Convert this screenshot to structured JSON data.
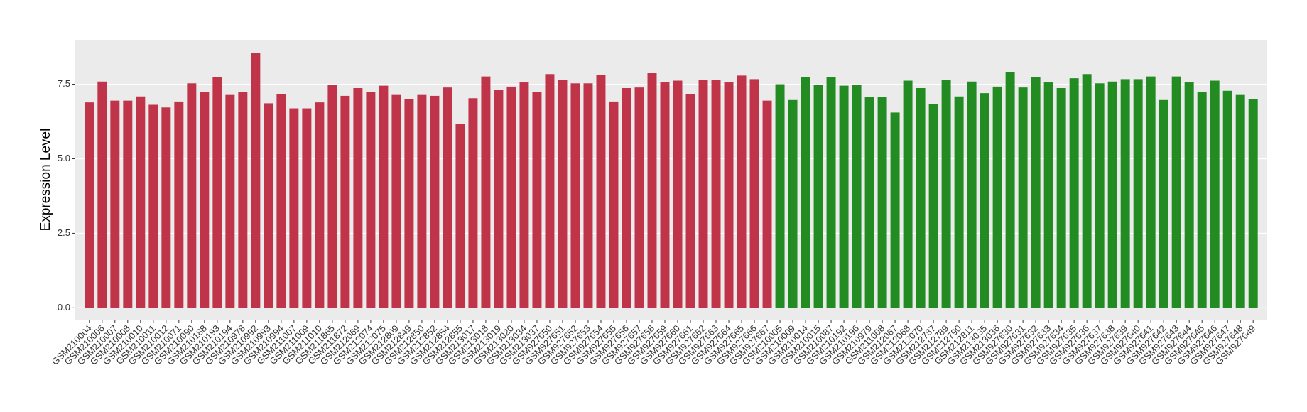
{
  "chart_data": {
    "type": "bar",
    "y_label": "Expression Level",
    "categories": [
      "GSM210004",
      "GSM210006",
      "GSM210007",
      "GSM210008",
      "GSM210010",
      "GSM210011",
      "GSM210012",
      "GSM210071",
      "GSM210090",
      "GSM210188",
      "GSM210193",
      "GSM210194",
      "GSM210978",
      "GSM210992",
      "GSM210993",
      "GSM210994",
      "GSM211007",
      "GSM211009",
      "GSM211010",
      "GSM211865",
      "GSM211872",
      "GSM212069",
      "GSM212074",
      "GSM212075",
      "GSM212809",
      "GSM212849",
      "GSM212850",
      "GSM212852",
      "GSM212854",
      "GSM212855",
      "GSM213017",
      "GSM213018",
      "GSM213019",
      "GSM213020",
      "GSM213034",
      "GSM213037",
      "GSM927650",
      "GSM927651",
      "GSM927652",
      "GSM927653",
      "GSM927654",
      "GSM927655",
      "GSM927656",
      "GSM927657",
      "GSM927658",
      "GSM927659",
      "GSM927660",
      "GSM927661",
      "GSM927662",
      "GSM927663",
      "GSM927664",
      "GSM927665",
      "GSM927666",
      "GSM927667",
      "GSM210005",
      "GSM210009",
      "GSM210014",
      "GSM210015",
      "GSM210087",
      "GSM210192",
      "GSM210196",
      "GSM210979",
      "GSM211008",
      "GSM212067",
      "GSM212068",
      "GSM212070",
      "GSM212787",
      "GSM212789",
      "GSM212790",
      "GSM212811",
      "GSM213035",
      "GSM213036",
      "GSM927630",
      "GSM927631",
      "GSM927632",
      "GSM927633",
      "GSM927634",
      "GSM927635",
      "GSM927636",
      "GSM927637",
      "GSM927638",
      "GSM927639",
      "GSM927640",
      "GSM927641",
      "GSM927642",
      "GSM927643",
      "GSM927644",
      "GSM927645",
      "GSM927646",
      "GSM927647",
      "GSM927648",
      "GSM927649"
    ],
    "values": [
      6.89,
      7.59,
      6.95,
      6.95,
      7.09,
      6.81,
      6.72,
      6.92,
      7.53,
      7.23,
      7.73,
      7.14,
      7.25,
      8.54,
      6.86,
      7.17,
      6.69,
      6.69,
      6.89,
      7.48,
      7.11,
      7.37,
      7.23,
      7.45,
      7.14,
      7.0,
      7.14,
      7.11,
      7.39,
      6.16,
      7.03,
      7.76,
      7.31,
      7.42,
      7.56,
      7.23,
      7.84,
      7.65,
      7.53,
      7.53,
      7.81,
      6.92,
      7.37,
      7.39,
      7.87,
      7.56,
      7.62,
      7.17,
      7.65,
      7.65,
      7.56,
      7.79,
      7.67,
      6.95,
      7.5,
      6.97,
      7.73,
      7.48,
      7.73,
      7.45,
      7.48,
      7.06,
      7.06,
      6.55,
      7.62,
      7.37,
      6.83,
      7.65,
      7.09,
      7.59,
      7.2,
      7.42,
      7.9,
      7.39,
      7.73,
      7.56,
      7.37,
      7.7,
      7.84,
      7.53,
      7.59,
      7.67,
      7.67,
      7.76,
      6.97,
      7.76,
      7.56,
      7.25,
      7.62,
      7.28,
      7.14,
      7.0
    ],
    "colors": [
      "#C0344A",
      "#C0344A",
      "#C0344A",
      "#C0344A",
      "#C0344A",
      "#C0344A",
      "#C0344A",
      "#C0344A",
      "#C0344A",
      "#C0344A",
      "#C0344A",
      "#C0344A",
      "#C0344A",
      "#C0344A",
      "#C0344A",
      "#C0344A",
      "#C0344A",
      "#C0344A",
      "#C0344A",
      "#C0344A",
      "#C0344A",
      "#C0344A",
      "#C0344A",
      "#C0344A",
      "#C0344A",
      "#C0344A",
      "#C0344A",
      "#C0344A",
      "#C0344A",
      "#C0344A",
      "#C0344A",
      "#C0344A",
      "#C0344A",
      "#C0344A",
      "#C0344A",
      "#C0344A",
      "#C0344A",
      "#C0344A",
      "#C0344A",
      "#C0344A",
      "#C0344A",
      "#C0344A",
      "#C0344A",
      "#C0344A",
      "#C0344A",
      "#C0344A",
      "#C0344A",
      "#C0344A",
      "#C0344A",
      "#C0344A",
      "#C0344A",
      "#C0344A",
      "#C0344A",
      "#C0344A",
      "#228B22",
      "#228B22",
      "#228B22",
      "#228B22",
      "#228B22",
      "#228B22",
      "#228B22",
      "#228B22",
      "#228B22",
      "#228B22",
      "#228B22",
      "#228B22",
      "#228B22",
      "#228B22",
      "#228B22",
      "#228B22",
      "#228B22",
      "#228B22",
      "#228B22",
      "#228B22",
      "#228B22",
      "#228B22",
      "#228B22",
      "#228B22",
      "#228B22",
      "#228B22",
      "#228B22",
      "#228B22",
      "#228B22",
      "#228B22",
      "#228B22",
      "#228B22",
      "#228B22",
      "#228B22",
      "#228B22",
      "#228B22",
      "#228B22",
      "#228B22"
    ],
    "ylim": [
      -0.42,
      8.99
    ],
    "yticks": [
      {
        "value": 0,
        "label": "0.0"
      },
      2.5,
      {
        "value": 5,
        "label": "5.0"
      },
      7.5
    ],
    "grid": true
  }
}
